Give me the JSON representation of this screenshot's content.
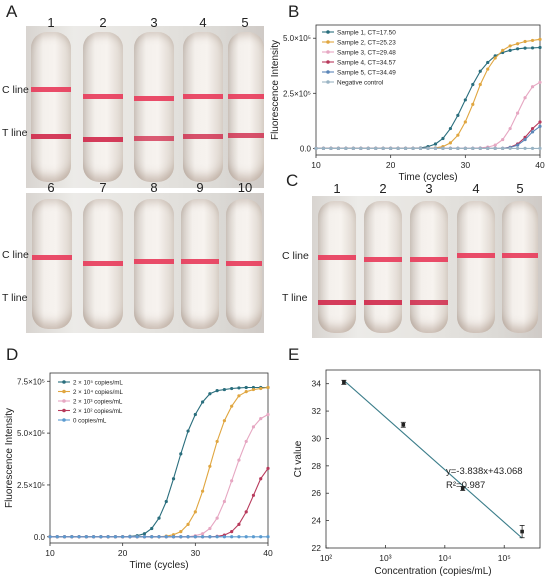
{
  "panels": {
    "A": {
      "letter": "A",
      "top_numbers": [
        "1",
        "2",
        "3",
        "4",
        "5"
      ],
      "bottom_numbers": [
        "6",
        "7",
        "8",
        "9",
        "10"
      ],
      "c_label": "C line",
      "t_label": "T line"
    },
    "C": {
      "letter": "C",
      "numbers": [
        "1",
        "2",
        "3",
        "4",
        "5"
      ],
      "c_label": "C line",
      "t_label": "T line"
    },
    "B": {
      "letter": "B"
    },
    "D": {
      "letter": "D"
    },
    "E": {
      "letter": "E"
    }
  },
  "chart_data": [
    {
      "id": "B",
      "type": "line",
      "xlabel": "Time (cycles)",
      "ylabel": "Fluorescence Intensity",
      "xlim": [
        10,
        40
      ],
      "ylim": [
        -0.3,
        5.6
      ],
      "x_ticks": [
        "10",
        "20",
        "30",
        "40"
      ],
      "y_ticks": [
        "0.0",
        "2.5×10⁵",
        "5.0×10⁵"
      ],
      "x": [
        10,
        11,
        12,
        13,
        14,
        15,
        16,
        17,
        18,
        19,
        20,
        21,
        22,
        23,
        24,
        25,
        26,
        27,
        28,
        29,
        30,
        31,
        32,
        33,
        34,
        35,
        36,
        37,
        38,
        39,
        40
      ],
      "series": [
        {
          "name": "Sample 1, CT=17.50",
          "color": "#2a6e7d",
          "values": [
            0,
            0,
            0,
            0,
            0,
            0,
            0,
            0,
            0,
            0,
            0,
            0,
            0,
            0,
            0.02,
            0.08,
            0.2,
            0.45,
            0.9,
            1.5,
            2.2,
            2.9,
            3.5,
            3.9,
            4.2,
            4.35,
            4.45,
            4.52,
            4.55,
            4.56,
            4.58
          ]
        },
        {
          "name": "Sample 2, CT=25.23",
          "color": "#e0a640",
          "values": [
            0,
            0,
            0,
            0,
            0,
            0,
            0,
            0,
            0,
            0,
            0,
            0,
            0,
            0,
            0,
            0,
            0.02,
            0.08,
            0.25,
            0.6,
            1.2,
            2.0,
            2.9,
            3.6,
            4.1,
            4.45,
            4.65,
            4.75,
            4.85,
            4.9,
            4.95
          ]
        },
        {
          "name": "Sample 3, CT=29.48",
          "color": "#e6a7c2",
          "values": [
            0,
            0,
            0,
            0,
            0,
            0,
            0,
            0,
            0,
            0,
            0,
            0,
            0,
            0,
            0,
            0,
            0,
            0,
            0,
            0,
            0,
            0,
            0.02,
            0.06,
            0.15,
            0.4,
            0.9,
            1.6,
            2.3,
            2.8,
            3.0
          ]
        },
        {
          "name": "Sample 4, CT=34.57",
          "color": "#b83a5c",
          "values": [
            0,
            0,
            0,
            0,
            0,
            0,
            0,
            0,
            0,
            0,
            0,
            0,
            0,
            0,
            0,
            0,
            0,
            0,
            0,
            0,
            0,
            0,
            0,
            0,
            0,
            0,
            0.05,
            0.2,
            0.5,
            0.9,
            1.2
          ]
        },
        {
          "name": "Sample 5, CT=34.49",
          "color": "#5b86b8",
          "values": [
            0,
            0,
            0,
            0,
            0,
            0,
            0,
            0,
            0,
            0,
            0,
            0,
            0,
            0,
            0,
            0,
            0,
            0,
            0,
            0,
            0,
            0,
            0,
            0,
            0,
            0,
            0.04,
            0.15,
            0.4,
            0.75,
            1.0
          ]
        },
        {
          "name": "Negative control",
          "color": "#9ab4c4",
          "values": [
            0,
            0,
            0,
            0,
            0,
            0,
            0,
            0,
            0,
            0,
            0,
            0,
            0,
            0,
            0,
            0,
            0,
            0,
            0,
            0,
            0,
            0,
            0,
            0,
            0,
            0,
            0,
            0,
            0,
            0,
            0
          ]
        }
      ]
    },
    {
      "id": "D",
      "type": "line",
      "xlabel": "Time (cycles)",
      "ylabel": "Fluorescence Intensity",
      "xlim": [
        10,
        40
      ],
      "ylim": [
        -0.3,
        7.9
      ],
      "x_ticks": [
        "10",
        "20",
        "30",
        "40"
      ],
      "y_ticks": [
        "0.0",
        "2.5×10⁵",
        "5.0×10⁵",
        "7.5×10⁵"
      ],
      "x": [
        10,
        11,
        12,
        13,
        14,
        15,
        16,
        17,
        18,
        19,
        20,
        21,
        22,
        23,
        24,
        25,
        26,
        27,
        28,
        29,
        30,
        31,
        32,
        33,
        34,
        35,
        36,
        37,
        38,
        39,
        40
      ],
      "series": [
        {
          "name": "2 × 10⁵ copies/mL",
          "color": "#2a6e7d",
          "values": [
            0,
            0,
            0,
            0,
            0,
            0,
            0,
            0,
            0,
            0,
            0,
            0.02,
            0.05,
            0.15,
            0.4,
            0.9,
            1.7,
            2.8,
            4.0,
            5.1,
            5.9,
            6.5,
            6.9,
            7.05,
            7.1,
            7.15,
            7.18,
            7.2,
            7.2,
            7.2,
            7.2
          ]
        },
        {
          "name": "2 × 10⁴ copies/mL",
          "color": "#e0a640",
          "values": [
            0,
            0,
            0,
            0,
            0,
            0,
            0,
            0,
            0,
            0,
            0,
            0,
            0,
            0,
            0,
            0,
            0.03,
            0.1,
            0.25,
            0.6,
            1.2,
            2.2,
            3.4,
            4.6,
            5.6,
            6.3,
            6.8,
            7.0,
            7.1,
            7.15,
            7.2
          ]
        },
        {
          "name": "2 × 10³ copies/mL",
          "color": "#e6a7c2",
          "values": [
            0,
            0,
            0,
            0,
            0,
            0,
            0,
            0,
            0,
            0,
            0,
            0,
            0,
            0,
            0,
            0,
            0,
            0,
            0,
            0,
            0.05,
            0.15,
            0.4,
            0.9,
            1.7,
            2.7,
            3.7,
            4.6,
            5.3,
            5.7,
            5.9
          ]
        },
        {
          "name": "2 × 10² copies/mL",
          "color": "#b83a5c",
          "values": [
            0,
            0,
            0,
            0,
            0,
            0,
            0,
            0,
            0,
            0,
            0,
            0,
            0,
            0,
            0,
            0,
            0,
            0,
            0,
            0,
            0,
            0,
            0,
            0.02,
            0.08,
            0.25,
            0.6,
            1.2,
            2.0,
            2.8,
            3.3
          ]
        },
        {
          "name": "0 copies/mL",
          "color": "#5b9bd0",
          "values": [
            0,
            0,
            0,
            0,
            0,
            0,
            0,
            0,
            0,
            0,
            0,
            0,
            0,
            0,
            0,
            0,
            0,
            0,
            0,
            0,
            0,
            0,
            0,
            0,
            0,
            0,
            0,
            0,
            0,
            0,
            0
          ]
        }
      ]
    },
    {
      "id": "E",
      "type": "scatter",
      "xlabel": "Concentration (copies/mL)",
      "ylabel": "Ct value",
      "xscale": "log",
      "xlim": [
        100,
        400000
      ],
      "ylim": [
        22,
        35
      ],
      "x_ticks": [
        {
          "v": 100,
          "label": "10²"
        },
        {
          "v": 1000,
          "label": "10³"
        },
        {
          "v": 10000,
          "label": "10⁴"
        },
        {
          "v": 100000,
          "label": "10⁵"
        }
      ],
      "y_ticks": [
        22,
        24,
        26,
        28,
        30,
        32,
        34
      ],
      "points": [
        {
          "x": 200,
          "y": 34.1,
          "err": 0.15
        },
        {
          "x": 2000,
          "y": 31.0,
          "err": 0.18
        },
        {
          "x": 20000,
          "y": 26.35,
          "err": 0.15
        },
        {
          "x": 200000,
          "y": 23.2,
          "err": 0.45
        }
      ],
      "fit": {
        "slope": -3.838,
        "intercept": 43.068
      },
      "annotation": {
        "equation": "y=-3.838x+43.068",
        "r2": "R²=0.987"
      }
    }
  ]
}
